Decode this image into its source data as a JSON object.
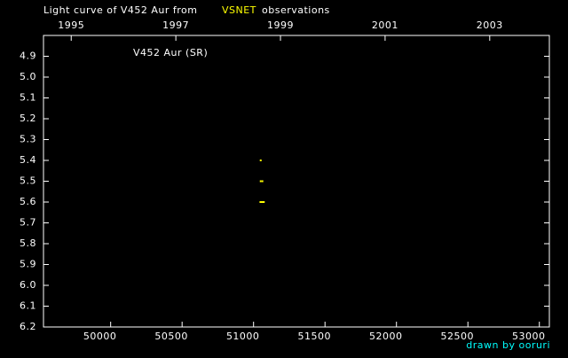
{
  "chart_data": {
    "type": "scatter",
    "title": "Light curve of V452 Aur from",
    "title_source": "VSNET",
    "title_suffix": "observations",
    "annotation": "V452 Aur (SR)",
    "credit": "drawn by ooruri",
    "x": [
      51050,
      51050,
      51062,
      51048,
      51056,
      51064,
      51072
    ],
    "values": [
      5.4,
      5.5,
      5.5,
      5.6,
      5.6,
      5.6,
      5.6
    ],
    "color": "#ffff00",
    "source_color": "#ffff00",
    "credit_color": "#00ffff",
    "xlim": [
      49530,
      53070
    ],
    "xticks": [
      50000,
      50500,
      51000,
      51500,
      52000,
      52500,
      53000
    ],
    "x2lim": [
      1994.47,
      2004.14
    ],
    "x2ticks": [
      1995,
      1997,
      1999,
      2001,
      2003
    ],
    "ylim": [
      6.2,
      4.8
    ],
    "yticks": [
      4.9,
      {
        "value": 5,
        "label": "5.0"
      },
      5.1,
      5.2,
      5.3,
      5.4,
      5.5,
      5.6,
      5.7,
      5.8,
      5.9,
      {
        "value": 6,
        "label": "6.0"
      },
      6.1,
      6.2
    ]
  }
}
